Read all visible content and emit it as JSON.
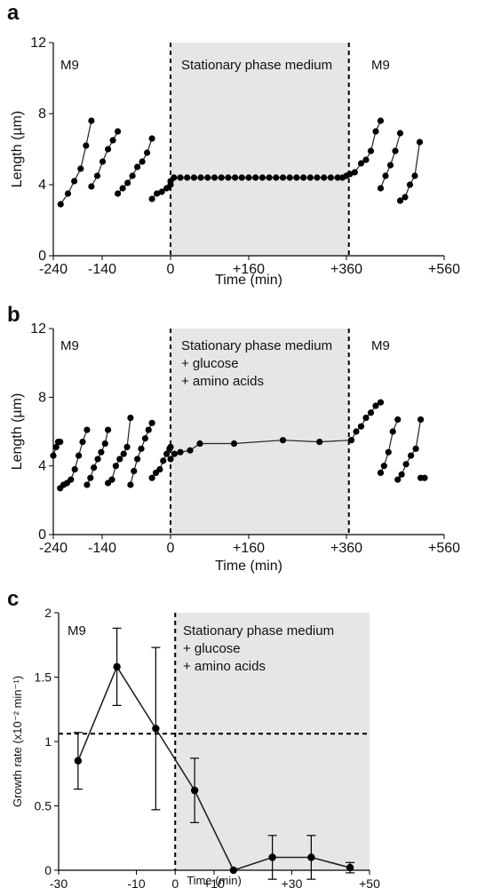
{
  "colors": {
    "shade": "#e6e6e6",
    "marker": "#000000",
    "line": "#222222"
  },
  "chart_data": [
    {
      "panel_label": "a",
      "type": "line",
      "xlabel": "Time (min)",
      "ylabel": "Length (µm)",
      "xlim": [
        -240,
        560
      ],
      "ylim": [
        0,
        12
      ],
      "xticks": [
        "-240",
        "-140",
        "0",
        "+160",
        "+360",
        "+560"
      ],
      "yticks": [
        "0",
        "4",
        "8",
        "12"
      ],
      "shaded_range": [
        0,
        365
      ],
      "dashed_verticals": [
        0,
        365
      ],
      "annotations": [
        "M9",
        "Stationary phase medium",
        "M9"
      ],
      "series": [
        {
          "x": [
            -225,
            -210,
            -197,
            -184,
            -173,
            -162
          ],
          "y": [
            2.9,
            3.5,
            4.2,
            4.9,
            6.2,
            7.6
          ]
        },
        {
          "x": [
            -162,
            -150,
            -139,
            -128,
            -118,
            -108
          ],
          "y": [
            3.9,
            4.5,
            5.3,
            6.0,
            6.5,
            7.0
          ]
        },
        {
          "x": [
            -108,
            -98,
            -88,
            -78,
            -68,
            -58,
            -48,
            -38
          ],
          "y": [
            3.5,
            3.8,
            4.1,
            4.5,
            5.0,
            5.3,
            5.8,
            6.6
          ]
        },
        {
          "x": [
            -38,
            -28,
            -18,
            -8,
            0
          ],
          "y": [
            3.2,
            3.5,
            3.6,
            3.8,
            4.0
          ]
        },
        {
          "x": [
            0,
            7,
            20,
            34,
            48,
            62,
            76,
            90,
            104,
            118,
            132,
            146,
            160,
            174,
            188,
            202,
            216,
            230,
            244,
            258,
            272,
            286,
            300,
            314,
            328,
            342,
            352,
            360,
            367
          ],
          "y": [
            4.2,
            4.4,
            4.4,
            4.4,
            4.4,
            4.4,
            4.4,
            4.4,
            4.4,
            4.4,
            4.4,
            4.4,
            4.4,
            4.4,
            4.4,
            4.4,
            4.4,
            4.4,
            4.4,
            4.4,
            4.4,
            4.4,
            4.4,
            4.4,
            4.4,
            4.4,
            4.4,
            4.5,
            4.6
          ]
        },
        {
          "x": [
            367,
            377,
            390,
            400,
            410,
            420,
            430
          ],
          "y": [
            4.6,
            4.7,
            5.2,
            5.4,
            5.9,
            7.0,
            7.6
          ]
        },
        {
          "x": [
            430,
            440,
            450,
            460,
            470
          ],
          "y": [
            3.8,
            4.5,
            5.1,
            5.9,
            6.9
          ]
        },
        {
          "x": [
            470,
            480,
            490,
            500,
            510
          ],
          "y": [
            3.1,
            3.3,
            4.0,
            4.5,
            6.4
          ]
        }
      ]
    },
    {
      "panel_label": "b",
      "type": "line",
      "xlabel": "Time (min)",
      "ylabel": "Length (µm)",
      "xlim": [
        -240,
        560
      ],
      "ylim": [
        0,
        12
      ],
      "xticks": [
        "-240",
        "-140",
        "0",
        "+160",
        "+360",
        "+560"
      ],
      "yticks": [
        "0",
        "4",
        "8",
        "12"
      ],
      "shaded_range": [
        0,
        365
      ],
      "dashed_verticals": [
        0,
        365
      ],
      "annotations": [
        "M9",
        "Stationary phase medium",
        "+ glucose",
        "+ amino acids",
        "M9"
      ],
      "series": [
        {
          "x": [
            -240,
            -234,
            -230,
            -226
          ],
          "y": [
            4.6,
            5.1,
            5.4,
            5.4
          ]
        },
        {
          "x": [
            -226,
            -219,
            -212,
            -204,
            -196,
            -188,
            -180,
            -171
          ],
          "y": [
            2.7,
            2.9,
            3.0,
            3.2,
            3.8,
            4.6,
            5.4,
            6.1
          ]
        },
        {
          "x": [
            -171,
            -164,
            -157,
            -149,
            -142,
            -134,
            -128
          ],
          "y": [
            2.9,
            3.3,
            3.9,
            4.4,
            4.8,
            5.3,
            6.1
          ]
        },
        {
          "x": [
            -128,
            -120,
            -112,
            -104,
            -96,
            -89,
            -82
          ],
          "y": [
            3.0,
            3.2,
            4.0,
            4.4,
            4.7,
            5.1,
            6.8
          ]
        },
        {
          "x": [
            -82,
            -75,
            -68,
            -60,
            -52,
            -45,
            -38
          ],
          "y": [
            2.9,
            3.7,
            4.4,
            5.0,
            5.6,
            6.1,
            6.5
          ]
        },
        {
          "x": [
            -38,
            -30,
            -22,
            -15,
            -8,
            -2,
            0
          ],
          "y": [
            3.3,
            3.6,
            3.8,
            4.3,
            4.7,
            5.0,
            5.1
          ]
        },
        {
          "x": [
            0,
            8,
            20,
            40,
            60,
            130,
            230,
            305,
            370
          ],
          "y": [
            4.4,
            4.7,
            4.8,
            4.9,
            5.3,
            5.3,
            5.5,
            5.4,
            5.5
          ]
        },
        {
          "x": [
            370,
            380,
            390,
            400,
            410,
            420,
            430
          ],
          "y": [
            5.5,
            6.0,
            6.3,
            6.8,
            7.1,
            7.5,
            7.7
          ]
        },
        {
          "x": [
            430,
            437,
            446,
            455,
            465
          ],
          "y": [
            3.6,
            4.0,
            4.8,
            6.0,
            6.7
          ]
        },
        {
          "x": [
            465,
            473,
            482,
            492,
            502,
            512
          ],
          "y": [
            3.2,
            3.5,
            4.1,
            4.6,
            5.0,
            6.7
          ]
        },
        {
          "x": [
            512,
            520
          ],
          "y": [
            3.3,
            3.3
          ]
        }
      ]
    },
    {
      "panel_label": "c",
      "type": "line",
      "xlabel": "Time (min)",
      "ylabel": "Growth rate (x10⁻² min⁻¹)",
      "xlim": [
        -30,
        50
      ],
      "ylim": [
        0,
        2
      ],
      "xticks": [
        "-30",
        "-10",
        "0",
        "+10",
        "+30",
        "+50"
      ],
      "yticks": [
        "0",
        "0.5",
        "1",
        "1.5",
        "2"
      ],
      "shaded_range": [
        0,
        50
      ],
      "dashed_verticals": [
        0
      ],
      "dashed_horizontal": 1.06,
      "annotations": [
        "M9",
        "Stationary phase medium",
        "+ glucose",
        "+ amino acids"
      ],
      "series": [
        {
          "x": [
            -25,
            -15,
            -5,
            5,
            15,
            25,
            35,
            45
          ],
          "y": [
            0.85,
            1.58,
            1.1,
            0.62,
            0.0,
            0.1,
            0.1,
            0.02
          ],
          "yerr": [
            0.22,
            0.3,
            0.63,
            0.25,
            0.0,
            0.17,
            0.17,
            0.04
          ]
        }
      ]
    }
  ]
}
